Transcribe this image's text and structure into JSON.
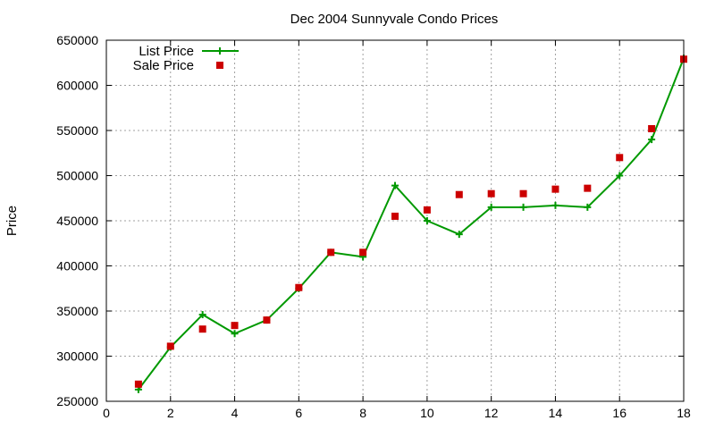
{
  "chart_data": {
    "type": "line",
    "title": "Dec 2004 Sunnyvale Condo Prices",
    "xlabel": "",
    "ylabel": "Price",
    "xlim": [
      0,
      18
    ],
    "ylim": [
      250000,
      650000
    ],
    "xticks": [
      0,
      2,
      4,
      6,
      8,
      10,
      12,
      14,
      16,
      18
    ],
    "yticks": [
      250000,
      300000,
      350000,
      400000,
      450000,
      500000,
      550000,
      600000,
      650000
    ],
    "grid": true,
    "legend_position": "top-left",
    "series": [
      {
        "name": "List Price",
        "style": "line-with-plus-markers",
        "color": "#009900",
        "points": [
          [
            1,
            263000
          ],
          [
            2,
            310000
          ],
          [
            3,
            346000
          ],
          [
            4,
            325000
          ],
          [
            5,
            340000
          ],
          [
            6,
            375000
          ],
          [
            7,
            415000
          ],
          [
            8,
            410000
          ],
          [
            9,
            489000
          ],
          [
            10,
            450000
          ],
          [
            11,
            435000
          ],
          [
            12,
            465000
          ],
          [
            13,
            465000
          ],
          [
            14,
            467000
          ],
          [
            15,
            465000
          ],
          [
            16,
            500000
          ],
          [
            17,
            540000
          ],
          [
            18,
            630000
          ]
        ]
      },
      {
        "name": "Sale Price",
        "style": "square-markers",
        "color": "#cc0000",
        "points": [
          [
            1,
            269000
          ],
          [
            2,
            311000
          ],
          [
            3,
            330000
          ],
          [
            4,
            334000
          ],
          [
            5,
            340000
          ],
          [
            6,
            376000
          ],
          [
            7,
            415000
          ],
          [
            8,
            415000
          ],
          [
            9,
            455000
          ],
          [
            10,
            462000
          ],
          [
            11,
            479000
          ],
          [
            12,
            480000
          ],
          [
            13,
            480000
          ],
          [
            14,
            485000
          ],
          [
            15,
            486000
          ],
          [
            16,
            520000
          ],
          [
            17,
            552000
          ],
          [
            18,
            629000
          ]
        ]
      }
    ]
  }
}
